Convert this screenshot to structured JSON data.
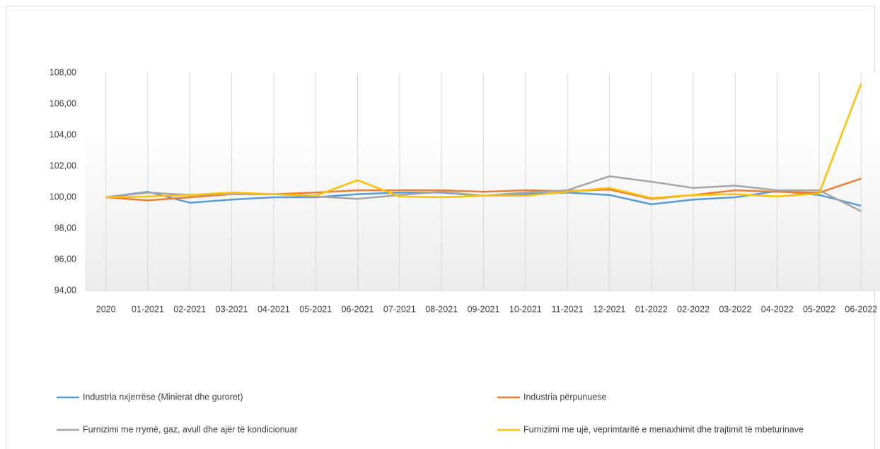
{
  "chart_data": {
    "type": "line",
    "categories": [
      "2020",
      "01-2021",
      "02-2021",
      "03-2021",
      "04-2021",
      "05-2021",
      "06-2021",
      "07-2021",
      "08-2021",
      "09-2021",
      "10-2021",
      "11-2021",
      "12-2021",
      "01-2022",
      "02-2022",
      "03-2022",
      "04-2022",
      "05-2022",
      "06-2022"
    ],
    "series": [
      {
        "name": "Industria nxjerrëse (Minierat dhe guroret)",
        "color": "#5b9bd5",
        "values": [
          100,
          100.35,
          99.65,
          99.85,
          100.0,
          100.0,
          100.2,
          100.3,
          100.3,
          100.1,
          100.2,
          100.3,
          100.15,
          99.55,
          99.85,
          100.0,
          100.4,
          100.15,
          99.45
        ]
      },
      {
        "name": "Industria përpunuese",
        "color": "#ed7d31",
        "values": [
          100,
          99.8,
          100.0,
          100.2,
          100.2,
          100.3,
          100.45,
          100.45,
          100.45,
          100.35,
          100.45,
          100.4,
          100.5,
          99.9,
          100.15,
          100.45,
          100.35,
          100.3,
          101.2
        ]
      },
      {
        "name": "Furnizimi me rrymë, gaz, avull dhe ajër të kondicionuar",
        "color": "#a5a5a5",
        "values": [
          100,
          100.3,
          100.15,
          100.2,
          100.2,
          100.05,
          99.9,
          100.15,
          100.35,
          100.1,
          100.3,
          100.45,
          101.35,
          101.0,
          100.6,
          100.75,
          100.45,
          100.45,
          99.1
        ]
      },
      {
        "name": "Furnizimi me ujë, veprimtaritë e menaxhimit dhe trajtimit të mbeturinave",
        "color": "#ffc000",
        "values": [
          100,
          100.05,
          100.15,
          100.3,
          100.2,
          100.1,
          101.1,
          100.05,
          100.0,
          100.1,
          100.1,
          100.35,
          100.6,
          99.95,
          100.15,
          100.2,
          100.05,
          100.25,
          107.3
        ]
      }
    ],
    "ylim": [
      94,
      108
    ],
    "yticks": [
      {
        "value": 94,
        "label": "94,00"
      },
      {
        "value": 96,
        "label": "96,00"
      },
      {
        "value": 98,
        "label": "98,00"
      },
      {
        "value": 100,
        "label": "100,00"
      },
      {
        "value": 102,
        "label": "102,00"
      },
      {
        "value": 104,
        "label": "104,00"
      },
      {
        "value": 106,
        "label": "106,00"
      },
      {
        "value": 108,
        "label": "108,00"
      }
    ],
    "legend": "bottom"
  }
}
